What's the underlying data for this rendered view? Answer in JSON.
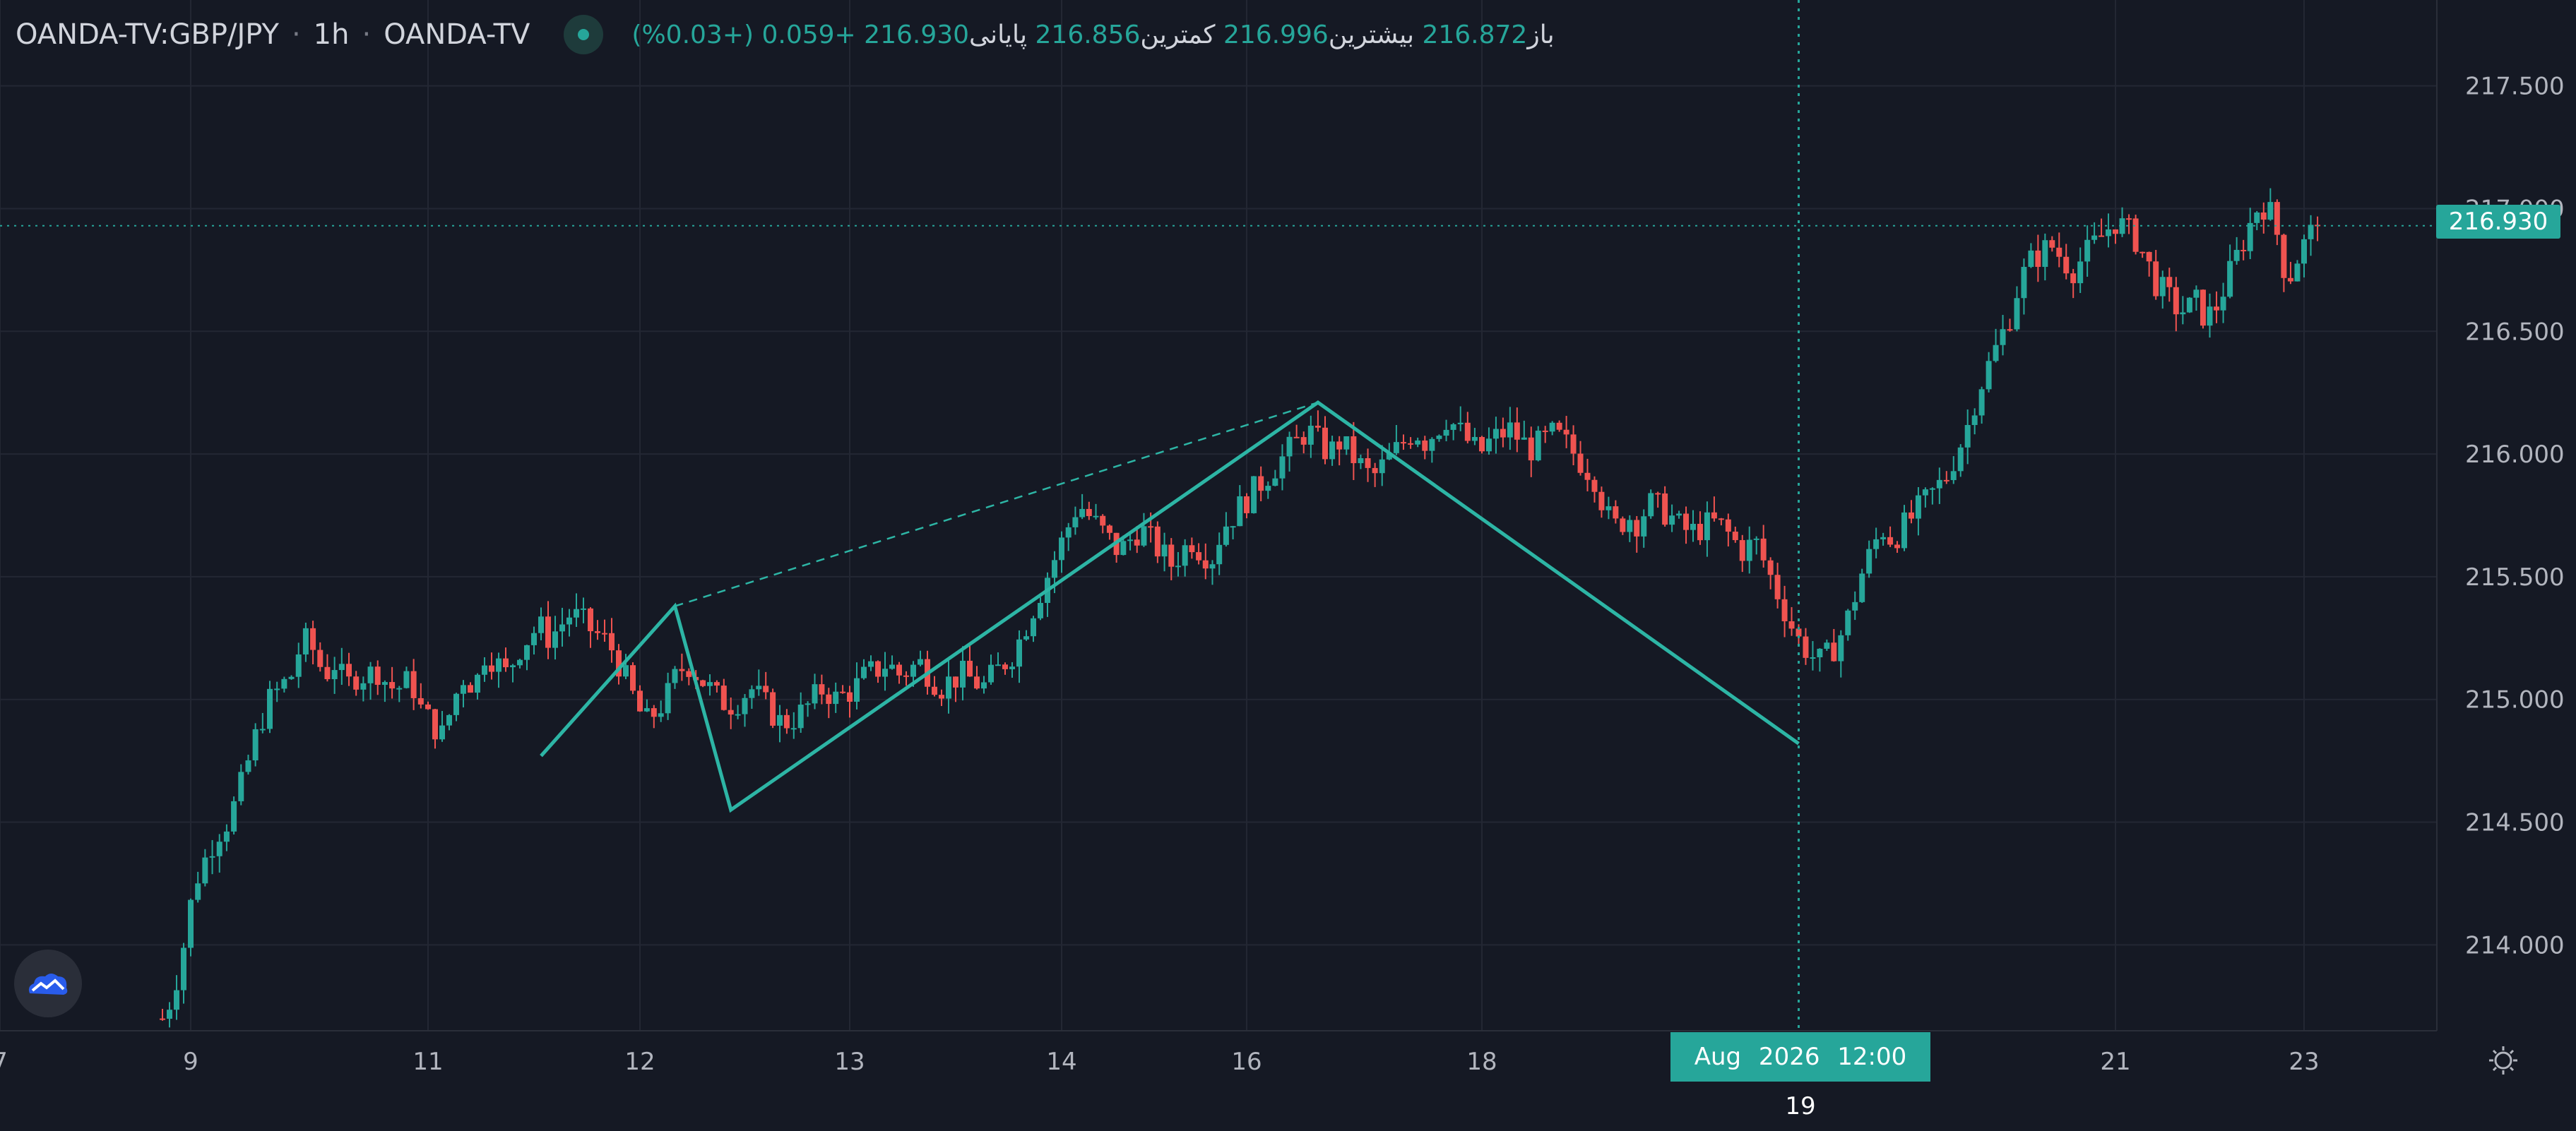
{
  "header": {
    "symbol": "OANDA-TV:GBP/JPY",
    "interval": "1h",
    "source": "OANDA-TV",
    "separator": "·",
    "open_label": "باز",
    "open_value": "216.872",
    "high_label": "بیشترین",
    "high_value": "216.996",
    "low_label": "کمترین",
    "low_value": "216.856",
    "close_label": "پایانی",
    "close_value": "216.930",
    "change": "+0.059 (+0.03%)"
  },
  "price_tag": "216.930",
  "crosshair_label": "Aug 2026   12:00 19",
  "icons": {
    "logo": "tradingview-cloud-icon",
    "settings": "gear-icon",
    "status": "market-status-dot-icon"
  },
  "colors": {
    "background": "#151924",
    "up": "#26a69a",
    "down": "#ef5350",
    "pattern": "#2db5a5",
    "grid": "#232733"
  },
  "chart_data": {
    "type": "candlestick",
    "ylim": [
      213.65,
      217.85
    ],
    "y_ticks": [
      "217.500",
      "217.000",
      "216.500",
      "216.000",
      "215.500",
      "215.000",
      "214.500",
      "214.000"
    ],
    "y_tick_values": [
      217.5,
      217.0,
      216.5,
      216.0,
      215.5,
      215.0,
      214.5,
      214.0
    ],
    "x_tick_labels": [
      "7",
      "9",
      "11",
      "12",
      "13",
      "14",
      "16",
      "18",
      "21",
      "23"
    ],
    "x_tick_bars": [
      0,
      27,
      60,
      90,
      120,
      150,
      177,
      210,
      300,
      328
    ],
    "bar_count": 330,
    "current_price": 216.93,
    "crosshair_bar": 255,
    "closes": [
      213.7,
      213.8,
      214.0,
      214.25,
      214.35,
      214.45,
      214.5,
      214.6,
      214.75,
      214.9,
      215.0,
      215.05,
      215.1,
      215.25,
      215.2,
      215.1,
      215.15,
      215.05,
      215.1,
      215.1,
      215.12,
      215.05,
      215.05,
      215.08,
      214.95,
      214.9,
      214.85,
      215.0,
      215.1,
      215.05,
      215.2,
      215.15,
      215.1,
      215.2,
      215.25,
      215.3,
      215.25,
      215.3,
      215.35,
      215.32,
      215.28,
      215.25,
      215.2,
      215.1,
      215.0,
      214.9,
      214.95,
      215.0,
      215.1,
      215.15,
      215.1,
      215.05,
      215.0,
      214.98,
      215.0,
      215.05,
      215.0,
      214.95,
      214.9,
      214.92,
      214.95,
      215.0,
      215.05,
      215.0,
      215.02,
      215.05,
      215.1,
      215.12,
      215.15,
      215.1,
      215.12,
      215.15,
      215.1,
      215.05,
      215.08,
      215.1,
      215.08,
      215.05,
      215.1,
      215.15,
      215.2,
      215.3,
      215.4,
      215.5,
      215.6,
      215.7,
      215.8,
      215.75,
      215.7,
      215.65,
      215.6,
      215.65,
      215.7,
      215.65,
      215.6,
      215.55,
      215.6,
      215.65,
      215.6,
      215.58,
      215.7,
      215.75,
      215.8,
      215.85,
      215.9,
      215.95,
      216.0,
      216.05,
      216.1,
      216.05,
      216.0,
      216.05,
      216.0,
      215.95,
      215.9,
      215.95,
      216.0,
      216.05,
      216.1,
      216.05,
      216.1,
      216.15,
      216.1,
      216.05,
      216.0,
      216.05,
      216.08,
      216.1,
      216.05,
      216.02,
      216.05,
      216.08,
      216.05,
      216.0,
      215.95,
      215.9,
      215.75,
      215.7,
      215.75,
      215.72,
      215.8,
      215.78,
      215.75,
      215.7,
      215.68,
      215.7,
      215.72,
      215.7,
      215.65,
      215.6,
      215.65,
      215.55,
      215.45,
      215.35,
      215.25,
      215.2,
      215.15,
      215.18,
      215.25,
      215.35,
      215.5,
      215.6,
      215.7,
      215.65,
      215.7,
      215.75,
      215.8,
      215.85,
      215.9,
      216.0,
      216.1,
      216.25,
      216.35,
      216.45,
      216.55,
      216.7,
      216.78,
      216.82,
      216.85,
      216.8,
      216.75,
      216.8,
      216.85,
      216.9,
      216.95,
      216.92,
      216.88,
      216.8,
      216.7,
      216.65,
      216.6,
      216.58,
      216.62,
      216.55,
      216.6,
      216.7,
      216.8,
      216.9,
      217.0,
      217.02,
      216.9,
      216.7,
      216.8,
      216.88,
      216.93
    ],
    "pattern_points": [
      {
        "bar": 76,
        "price": 214.77
      },
      {
        "bar": 95,
        "price": 215.38
      },
      {
        "bar": 103,
        "price": 214.55
      },
      {
        "bar": 187,
        "price": 216.21
      },
      {
        "bar": 255,
        "price": 214.82
      }
    ],
    "pattern_dashed": [
      {
        "bar": 95,
        "price": 215.38
      },
      {
        "bar": 187,
        "price": 216.21
      }
    ]
  }
}
